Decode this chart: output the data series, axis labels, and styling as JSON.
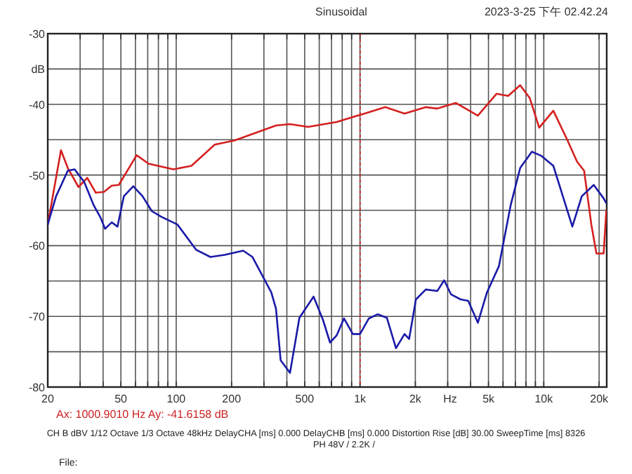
{
  "chart_data": {
    "type": "line",
    "title": "Sinusoidal",
    "subtitle": "2023-3-25 下午 02.42.24",
    "xlabel": "Hz",
    "ylabel": "dB",
    "log": "x",
    "xlim": [
      20,
      22000
    ],
    "ylim": [
      -80,
      -30
    ],
    "xticks": [
      20,
      {
        "value": 30,
        "label": null
      },
      {
        "value": 40,
        "label": null
      },
      50,
      {
        "value": 60,
        "label": null
      },
      {
        "value": 70,
        "label": null
      },
      {
        "value": 80,
        "label": null
      },
      {
        "value": 90,
        "label": null
      },
      100,
      200,
      {
        "value": 300,
        "label": null
      },
      {
        "value": 400,
        "label": null
      },
      500,
      {
        "value": 600,
        "label": null
      },
      {
        "value": 700,
        "label": null
      },
      {
        "value": 800,
        "label": null
      },
      {
        "value": 900,
        "label": null
      },
      {
        "value": 1000,
        "label": "1k"
      },
      {
        "value": 2000,
        "label": "2k"
      },
      {
        "value": 3000,
        "label": null
      },
      {
        "value": 4000,
        "label": null
      },
      {
        "value": 5000,
        "label": "5k"
      },
      {
        "value": 6000,
        "label": null
      },
      {
        "value": 7000,
        "label": null
      },
      {
        "value": 8000,
        "label": null
      },
      {
        "value": 9000,
        "label": null
      },
      {
        "value": 10000,
        "label": "10k"
      },
      {
        "value": 20000,
        "label": "20k"
      }
    ],
    "yticks": [
      -30,
      {
        "value": -35,
        "label": null
      },
      -40,
      {
        "value": -45,
        "label": null
      },
      -50,
      {
        "value": -55,
        "label": null
      },
      -60,
      {
        "value": -65,
        "label": null
      },
      -70,
      {
        "value": -75,
        "label": null
      },
      -80
    ],
    "grid": true,
    "line_style": "solid",
    "marker": "none",
    "ref_lines": [
      {
        "axis": "x",
        "value": 1000.901,
        "color": "#cc2222",
        "line_style": "dotted"
      }
    ],
    "annotations": [
      "Ax: 1000.9010 Hz  Ay: -41.6158 dB",
      "CH B   dBV   1/12 Octave   1/3 Octave   48kHz   DelayCHA [ms] 0.000   DelayCHB [ms] 0.000   Distortion Rise [dB] 30.00   SweepTime [ms] 8326",
      "PH 48V / 2.2K /",
      "File:"
    ],
    "series": [
      {
        "color": "#d42020",
        "x": [
          20,
          23.6,
          25.7,
          29.4,
          32.8,
          36.5,
          40.4,
          44.6,
          48.7,
          60.9,
          70.8,
          96.5,
          121,
          162,
          208,
          349,
          416,
          522,
          746,
          1000,
          1373,
          1747,
          2280,
          2636,
          3326,
          4378,
          5538,
          6400,
          7440,
          8380,
          9440,
          11270,
          13460,
          15170,
          16580,
          18140,
          19340,
          21160,
          21900
        ],
        "values": [
          -57.0,
          -46.5,
          -49.0,
          -51.7,
          -50.4,
          -52.5,
          -52.4,
          -51.5,
          -51.4,
          -47.2,
          -48.4,
          -49.2,
          -48.7,
          -45.7,
          -45.1,
          -43.0,
          -42.8,
          -43.2,
          -42.5,
          -41.5,
          -40.4,
          -41.3,
          -40.4,
          -40.6,
          -39.8,
          -41.6,
          -38.5,
          -38.8,
          -37.3,
          -39.1,
          -43.3,
          -40.9,
          -45.1,
          -48.1,
          -49.4,
          -57.0,
          -61.1,
          -61.1,
          -55.0
        ]
      },
      {
        "color": "#1a1aa8",
        "x": [
          20,
          22.2,
          25.7,
          28.0,
          31.6,
          35.6,
          38.7,
          41.0,
          44.6,
          47.9,
          51.9,
          58.4,
          65.6,
          73.6,
          82.9,
          101.5,
          128.6,
          153.5,
          183.2,
          231.5,
          260,
          329,
          349,
          370,
          416,
          468,
          559,
          629,
          687,
          746,
          818,
          914,
          1000,
          1117,
          1250,
          1400,
          1570,
          1747,
          1850,
          2015,
          2280,
          2636,
          2870,
          3130,
          3530,
          3880,
          4378,
          4910,
          5700,
          6600,
          7440,
          8620,
          9720,
          11270,
          12700,
          14300,
          16100,
          18700,
          21160,
          21900
        ],
        "values": [
          -57.0,
          -53.0,
          -49.4,
          -49.2,
          -51.0,
          -54.3,
          -56.0,
          -57.6,
          -56.7,
          -57.3,
          -53.0,
          -51.6,
          -53.0,
          -55.1,
          -55.9,
          -57.0,
          -60.6,
          -61.6,
          -61.3,
          -60.7,
          -61.6,
          -66.6,
          -68.9,
          -76.2,
          -78.0,
          -70.2,
          -67.2,
          -70.5,
          -73.7,
          -72.7,
          -70.3,
          -72.5,
          -72.5,
          -70.3,
          -69.7,
          -70.2,
          -74.5,
          -72.5,
          -73.2,
          -67.6,
          -66.2,
          -66.4,
          -64.9,
          -66.9,
          -67.6,
          -67.8,
          -70.9,
          -66.6,
          -62.9,
          -54.3,
          -49.0,
          -46.7,
          -47.3,
          -48.7,
          -53.0,
          -57.3,
          -53.0,
          -51.4,
          -53.3,
          -54.0
        ]
      }
    ]
  }
}
